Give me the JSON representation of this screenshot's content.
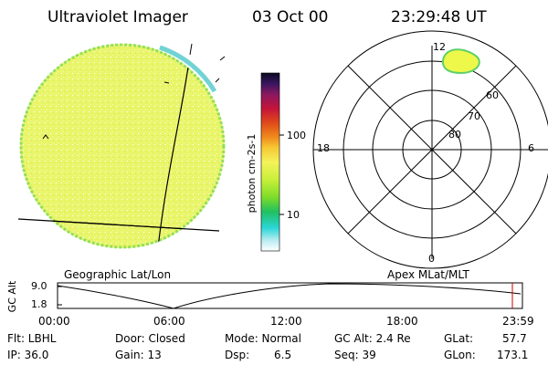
{
  "header": {
    "instrument": "Ultraviolet Imager",
    "date": "03 Oct 00",
    "time": "23:29:48 UT"
  },
  "colorbar": {
    "label": "photon cm-2s-1",
    "ticks": [
      "100",
      "10"
    ]
  },
  "polar_plot": {
    "lat_labels": [
      "60",
      "70",
      "80"
    ],
    "mlt_labels": [
      "12",
      "18",
      "6",
      "0"
    ]
  },
  "captions": {
    "left": "Geographic Lat/Lon",
    "right": "Apex MLat/MLT"
  },
  "altitude_strip": {
    "ylabel": "GC Alt",
    "y_ticks": [
      "9.0",
      "1.8"
    ],
    "x_ticks": [
      "00:00",
      "06:00",
      "12:00",
      "18:00",
      "23:59"
    ]
  },
  "status": {
    "row1": {
      "flt": "Flt: LBHL",
      "door": "Door: Closed",
      "mode": "Mode: Normal",
      "gcalt": "GC Alt: 2.4 Re",
      "glat_label": "GLat:",
      "glat_value": "57.7"
    },
    "row2": {
      "ip": "IP: 36.0",
      "gain": "Gain: 13",
      "dsp_label": "Dsp:",
      "dsp_value": "6.5",
      "seq": "Seq: 39",
      "glon_label": "GLon:",
      "glon_value": "173.1"
    }
  },
  "colors": {
    "disk_fill": "#e9f56a",
    "disk_edge": "#5fd06a",
    "oval_fill": "#eef84a",
    "marker": "#cc0000"
  }
}
